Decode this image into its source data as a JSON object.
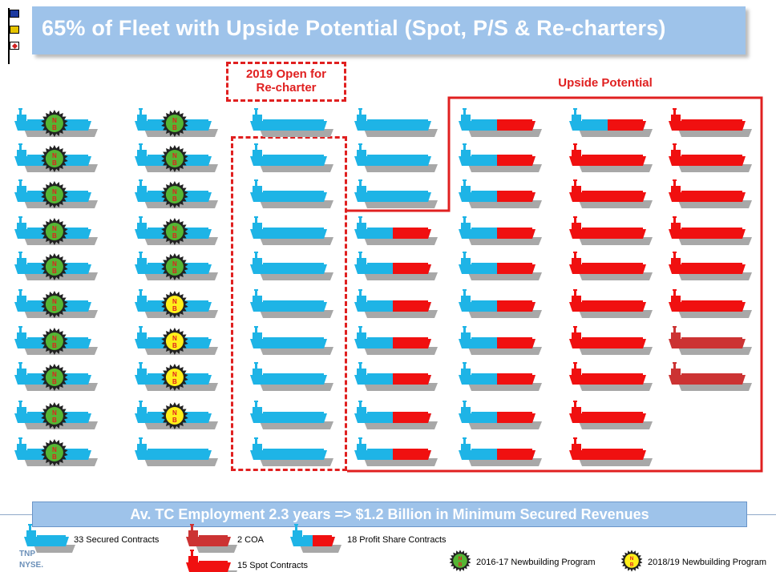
{
  "header": {
    "title": "65% of Fleet with Upside Potential (Spot, P/S & Re-charters)"
  },
  "callouts": {
    "open_line1": "2019 Open for",
    "open_line2": "Re-charter",
    "upside": "Upside Potential"
  },
  "badges": {
    "n": "N",
    "b": "B"
  },
  "footer": {
    "banner": "Av. TC Employment 2.3 years  => $1.2 Billion in Minimum Secured Revenues"
  },
  "legend": {
    "secured": "33 Secured  Contracts",
    "coa": "2 COA",
    "profit_share": "18 Profit Share Contracts",
    "spot": "15 Spot Contracts",
    "nb_2016": "2016-17 Newbuilding Program",
    "nb_2018": "2018/19 Newbuilding Program"
  },
  "logo": {
    "tnp": "TNP",
    "nyse": "NYSE."
  },
  "colors": {
    "secured": "#1eb4e6",
    "spot": "#f01010",
    "coa": "#cc3333",
    "badge_2016": "#55b533",
    "badge_2018": "#ffef1a",
    "accent": "#e02020",
    "banner": "#9ec3ea"
  },
  "fleet": {
    "columns": [
      [
        "nb2016",
        "nb2016",
        "nb2016",
        "nb2016",
        "nb2016",
        "nb2016",
        "nb2016",
        "nb2016",
        "nb2016",
        "nb2016"
      ],
      [
        "nb2016",
        "nb2016",
        "nb2016",
        "nb2016",
        "nb2016",
        "nb2018",
        "nb2018",
        "nb2018",
        "nb2018",
        "secured"
      ],
      [
        "secured",
        "secured",
        "secured",
        "secured",
        "secured",
        "secured",
        "secured",
        "secured",
        "secured",
        "secured"
      ],
      [
        "secured",
        "secured",
        "secured",
        "ps",
        "ps",
        "ps",
        "ps",
        "ps",
        "ps",
        "ps"
      ],
      [
        "ps",
        "ps",
        "ps",
        "ps",
        "ps",
        "ps",
        "ps",
        "ps",
        "ps",
        "ps"
      ],
      [
        "ps",
        "spot",
        "spot",
        "spot",
        "spot",
        "spot",
        "spot",
        "spot",
        "spot",
        "spot"
      ],
      [
        "spot",
        "spot",
        "spot",
        "spot",
        "spot",
        "spot",
        "coa",
        "coa"
      ]
    ]
  }
}
